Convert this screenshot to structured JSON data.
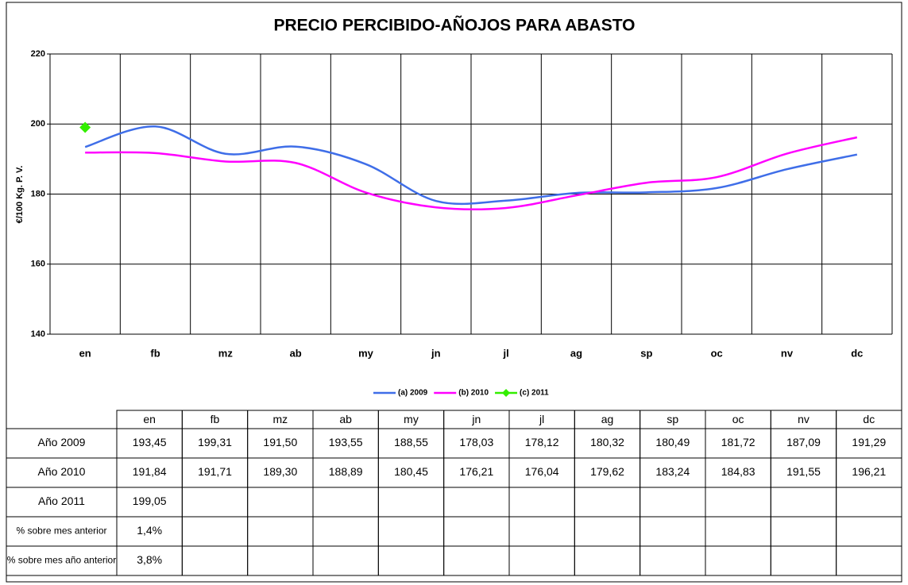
{
  "chart_data": {
    "type": "line",
    "title": "PRECIO PERCIBIDO-AÑOJOS PARA ABASTO",
    "y_label": "€/100 Kg. P. V.",
    "categories": [
      "en",
      "fb",
      "mz",
      "ab",
      "my",
      "jn",
      "jl",
      "ag",
      "sp",
      "oc",
      "nv",
      "dc"
    ],
    "series": [
      {
        "name": "(a) 2009",
        "color": "#3f6ee8",
        "smooth": true,
        "values": [
          193.45,
          199.31,
          191.5,
          193.55,
          188.55,
          178.03,
          178.12,
          180.32,
          180.49,
          181.72,
          187.09,
          191.29
        ],
        "value_labels": [
          "193,45",
          "199,31",
          "191,50",
          "193,55",
          "188,55",
          "178,03",
          "178,12",
          "180,32",
          "180,49",
          "181,72",
          "187,09",
          "191,29"
        ]
      },
      {
        "name": "(b) 2010",
        "color": "#ff00ff",
        "smooth": true,
        "values": [
          191.84,
          191.71,
          189.3,
          188.89,
          180.45,
          176.21,
          176.04,
          179.62,
          183.24,
          184.83,
          191.55,
          196.21
        ],
        "value_labels": [
          "191,84",
          "191,71",
          "189,30",
          "188,89",
          "180,45",
          "176,21",
          "176,04",
          "179,62",
          "183,24",
          "184,83",
          "191,55",
          "196,21"
        ]
      },
      {
        "name": "(c) 2011",
        "color": "#33ee00",
        "marker": "diamond",
        "values": [
          199.05,
          null,
          null,
          null,
          null,
          null,
          null,
          null,
          null,
          null,
          null,
          null
        ],
        "value_labels": [
          "199,05",
          null,
          null,
          null,
          null,
          null,
          null,
          null,
          null,
          null,
          null,
          null
        ]
      }
    ],
    "ylim": [
      140,
      220
    ],
    "yticks": [
      140,
      160,
      180,
      200,
      220
    ],
    "grid": true,
    "legend": "bottom"
  },
  "table": {
    "rows": [
      {
        "label": "Año 2009"
      },
      {
        "label": "Año 2010"
      },
      {
        "label": "Año 2011"
      },
      {
        "label": "% sobre mes anterior",
        "values": [
          "1,4%"
        ]
      },
      {
        "label": "% sobre mes año anterior",
        "values": [
          "3,8%"
        ]
      }
    ]
  }
}
